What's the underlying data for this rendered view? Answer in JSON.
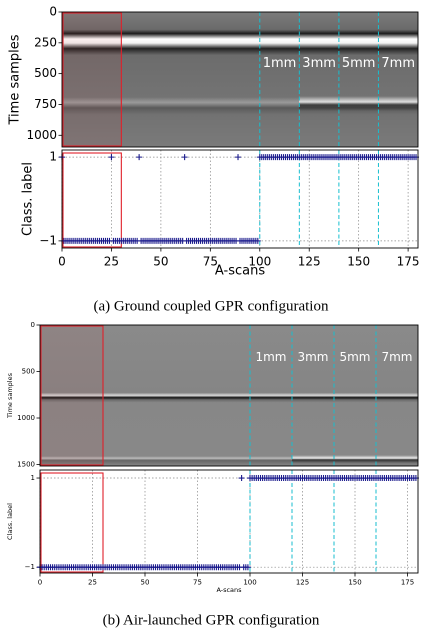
{
  "chart_data": [
    {
      "type": "image",
      "ylabel": "Time samples",
      "xlim": [
        0,
        180
      ],
      "ylim": [
        0,
        1095
      ],
      "y_inverted": true,
      "yticks": [
        0,
        250,
        500,
        750,
        1000
      ],
      "highlight": [
        0,
        30
      ],
      "vlines": [
        100,
        120,
        140,
        160
      ],
      "annotations": [
        "1mm",
        "3mm",
        "5mm",
        "7mm"
      ]
    },
    {
      "type": "scatter",
      "xlabel": "A-scans",
      "ylabel": "Class. label",
      "color": "#1a1a8c",
      "grid": true,
      "xlim": [
        0,
        180
      ],
      "ylim": [
        -1.17,
        1.17
      ],
      "xticks": [
        0,
        25,
        50,
        75,
        100,
        125,
        150,
        175
      ],
      "yticks": [
        {
          "value": -1,
          "label": "−1"
        },
        1
      ],
      "highlight": [
        0,
        30
      ],
      "vlines": [
        100,
        120,
        140,
        160
      ],
      "x": [
        0,
        1,
        2,
        3,
        4,
        5,
        6,
        7,
        8,
        9,
        10,
        11,
        12,
        13,
        14,
        15,
        16,
        17,
        18,
        19,
        20,
        21,
        22,
        23,
        24,
        25,
        26,
        27,
        28,
        29,
        30,
        31,
        32,
        33,
        34,
        35,
        36,
        37,
        38,
        39,
        40,
        41,
        42,
        43,
        44,
        45,
        46,
        47,
        48,
        49,
        50,
        51,
        52,
        53,
        54,
        55,
        56,
        57,
        58,
        59,
        60,
        61,
        62,
        63,
        64,
        65,
        66,
        67,
        68,
        69,
        70,
        71,
        72,
        73,
        74,
        75,
        76,
        77,
        78,
        79,
        80,
        81,
        82,
        83,
        84,
        85,
        86,
        87,
        88,
        89,
        90,
        91,
        92,
        93,
        94,
        95,
        96,
        97,
        98,
        99,
        100,
        101,
        102,
        103,
        104,
        105,
        106,
        107,
        108,
        109,
        110,
        111,
        112,
        113,
        114,
        115,
        116,
        117,
        118,
        119,
        120,
        121,
        122,
        123,
        124,
        125,
        126,
        127,
        128,
        129,
        130,
        131,
        132,
        133,
        134,
        135,
        136,
        137,
        138,
        139,
        140,
        141,
        142,
        143,
        144,
        145,
        146,
        147,
        148,
        149,
        150,
        151,
        152,
        153,
        154,
        155,
        156,
        157,
        158,
        159,
        160,
        161,
        162,
        163,
        164,
        165,
        166,
        167,
        168,
        169,
        170,
        171,
        172,
        173,
        174,
        175,
        176,
        177,
        178,
        179
      ],
      "values": [
        1,
        -1,
        -1,
        -1,
        -1,
        -1,
        -1,
        -1,
        -1,
        -1,
        -1,
        -1,
        -1,
        -1,
        -1,
        -1,
        -1,
        -1,
        -1,
        -1,
        -1,
        -1,
        -1,
        -1,
        -1,
        1,
        -1,
        -1,
        -1,
        -1,
        -1,
        -1,
        -1,
        -1,
        -1,
        -1,
        -1,
        -1,
        -1,
        1,
        -1,
        -1,
        -1,
        -1,
        -1,
        -1,
        -1,
        -1,
        -1,
        -1,
        -1,
        -1,
        -1,
        -1,
        -1,
        -1,
        -1,
        -1,
        -1,
        -1,
        -1,
        -1,
        1,
        -1,
        -1,
        -1,
        -1,
        -1,
        -1,
        -1,
        -1,
        -1,
        -1,
        -1,
        -1,
        -1,
        -1,
        -1,
        -1,
        -1,
        -1,
        -1,
        -1,
        -1,
        -1,
        -1,
        -1,
        -1,
        -1,
        1,
        -1,
        -1,
        -1,
        -1,
        -1,
        -1,
        -1,
        -1,
        -1,
        -1,
        1,
        1,
        1,
        1,
        1,
        1,
        1,
        1,
        1,
        1,
        1,
        1,
        1,
        1,
        1,
        1,
        1,
        1,
        1,
        1,
        1,
        1,
        1,
        1,
        1,
        1,
        1,
        1,
        1,
        1,
        1,
        1,
        1,
        1,
        1,
        1,
        1,
        1,
        1,
        1,
        1,
        1,
        1,
        1,
        1,
        1,
        1,
        1,
        1,
        1,
        1,
        1,
        1,
        1,
        1,
        1,
        1,
        1,
        1,
        1,
        1,
        1,
        1,
        1,
        1,
        1,
        1,
        1,
        1,
        1,
        1,
        1,
        1,
        1,
        1,
        1,
        1,
        1,
        1,
        1
      ]
    },
    {
      "type": "image",
      "ylabel": "Time samples",
      "xlim": [
        0,
        180
      ],
      "ylim": [
        0,
        1516
      ],
      "y_inverted": true,
      "yticks": [
        0,
        500,
        1000,
        1500
      ],
      "highlight": [
        0,
        30
      ],
      "vlines": [
        100,
        120,
        140,
        160
      ],
      "annotations": [
        "1mm",
        "3mm",
        "5mm",
        "7mm"
      ]
    },
    {
      "type": "scatter",
      "xlabel": "A-scans",
      "ylabel": "Class. label",
      "color": "#1a1a8c",
      "grid": true,
      "xlim": [
        0,
        180
      ],
      "ylim": [
        -1.13,
        1.18
      ],
      "xticks": [
        0,
        25,
        50,
        75,
        100,
        125,
        150,
        175
      ],
      "yticks": [
        {
          "value": -1,
          "label": "−1"
        },
        1
      ],
      "highlight": [
        0,
        30
      ],
      "vlines": [
        100,
        120,
        140,
        160
      ],
      "x": [
        0,
        1,
        2,
        3,
        4,
        5,
        6,
        7,
        8,
        9,
        10,
        11,
        12,
        13,
        14,
        15,
        16,
        17,
        18,
        19,
        20,
        21,
        22,
        23,
        24,
        25,
        26,
        27,
        28,
        29,
        30,
        31,
        32,
        33,
        34,
        35,
        36,
        37,
        38,
        39,
        40,
        41,
        42,
        43,
        44,
        45,
        46,
        47,
        48,
        49,
        50,
        51,
        52,
        53,
        54,
        55,
        56,
        57,
        58,
        59,
        60,
        61,
        62,
        63,
        64,
        65,
        66,
        67,
        68,
        69,
        70,
        71,
        72,
        73,
        74,
        75,
        76,
        77,
        78,
        79,
        80,
        81,
        82,
        83,
        84,
        85,
        86,
        87,
        88,
        89,
        90,
        91,
        92,
        93,
        94,
        95,
        96,
        97,
        98,
        99,
        100,
        101,
        102,
        103,
        104,
        105,
        106,
        107,
        108,
        109,
        110,
        111,
        112,
        113,
        114,
        115,
        116,
        117,
        118,
        119,
        120,
        121,
        122,
        123,
        124,
        125,
        126,
        127,
        128,
        129,
        130,
        131,
        132,
        133,
        134,
        135,
        136,
        137,
        138,
        139,
        140,
        141,
        142,
        143,
        144,
        145,
        146,
        147,
        148,
        149,
        150,
        151,
        152,
        153,
        154,
        155,
        156,
        157,
        158,
        159,
        160,
        161,
        162,
        163,
        164,
        165,
        166,
        167,
        168,
        169,
        170,
        171,
        172,
        173,
        174,
        175,
        176,
        177,
        178,
        179
      ],
      "values": [
        -1,
        -1,
        -1,
        -1,
        -1,
        -1,
        -1,
        -1,
        -1,
        -1,
        -1,
        -1,
        -1,
        -1,
        -1,
        -1,
        -1,
        -1,
        -1,
        -1,
        -1,
        -1,
        -1,
        -1,
        -1,
        -1,
        -1,
        -1,
        -1,
        -1,
        -1,
        -1,
        -1,
        -1,
        -1,
        -1,
        -1,
        -1,
        -1,
        -1,
        -1,
        -1,
        -1,
        -1,
        -1,
        -1,
        -1,
        -1,
        -1,
        -1,
        -1,
        -1,
        -1,
        -1,
        -1,
        -1,
        -1,
        -1,
        -1,
        -1,
        -1,
        -1,
        -1,
        -1,
        -1,
        -1,
        -1,
        -1,
        -1,
        -1,
        -1,
        -1,
        -1,
        -1,
        -1,
        -1,
        -1,
        -1,
        -1,
        -1,
        -1,
        -1,
        -1,
        -1,
        -1,
        -1,
        -1,
        -1,
        -1,
        -1,
        -1,
        -1,
        -1,
        -1,
        -1,
        -1,
        1,
        -1,
        -1,
        -1,
        1,
        1,
        1,
        1,
        1,
        1,
        1,
        1,
        1,
        1,
        1,
        1,
        1,
        1,
        1,
        1,
        1,
        1,
        1,
        1,
        1,
        1,
        1,
        1,
        1,
        1,
        1,
        1,
        1,
        1,
        1,
        1,
        1,
        1,
        1,
        1,
        1,
        1,
        1,
        1,
        1,
        1,
        1,
        1,
        1,
        1,
        1,
        1,
        1,
        1,
        1,
        1,
        1,
        1,
        1,
        1,
        1,
        1,
        1,
        1,
        1,
        1,
        1,
        1,
        1,
        1,
        1,
        1,
        1,
        1,
        1,
        1,
        1,
        1,
        1,
        1,
        1,
        1,
        1,
        1
      ]
    }
  ],
  "captions": [
    "(a) Ground coupled GPR configuration",
    "(b) Air-launched GPR configuration"
  ]
}
